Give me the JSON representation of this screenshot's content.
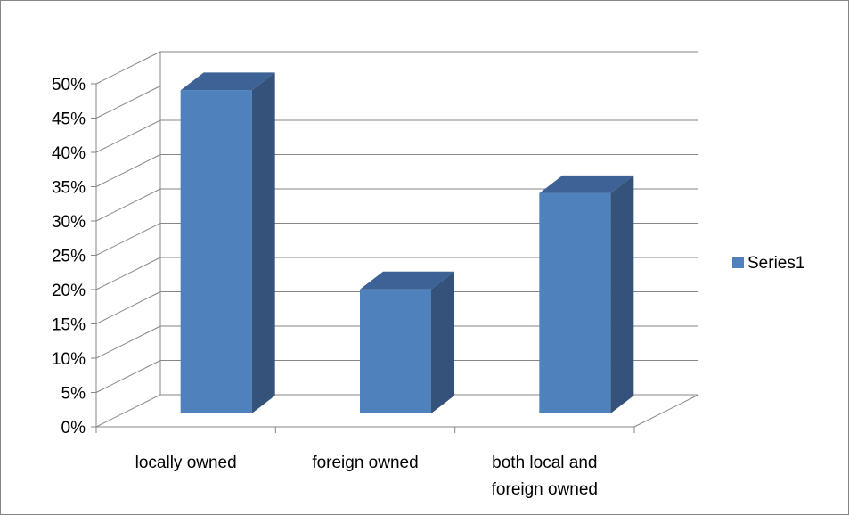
{
  "chart_data": {
    "type": "bar",
    "title": "",
    "xlabel": "",
    "ylabel": "",
    "categories": [
      [
        "locally owned"
      ],
      [
        "foreign owned"
      ],
      [
        "both local and",
        "foreign owned"
      ]
    ],
    "series": [
      {
        "name": "Series1",
        "values": [
          0.48,
          0.19,
          0.33
        ]
      }
    ],
    "ylim": [
      0,
      0.5
    ],
    "y_ticks": [
      "0%",
      "5%",
      "10%",
      "15%",
      "20%",
      "25%",
      "30%",
      "35%",
      "40%",
      "45%",
      "50%"
    ],
    "y_tick_values": [
      0,
      0.05,
      0.1,
      0.15,
      0.2,
      0.25,
      0.3,
      0.35,
      0.4,
      0.45,
      0.5
    ],
    "grid": true,
    "three_d": true,
    "legend_position": "right",
    "colors": {
      "bar_front": "#4f81bd",
      "bar_side": "#34527a",
      "bar_top": "#3d6295",
      "grid": "#868686"
    }
  }
}
